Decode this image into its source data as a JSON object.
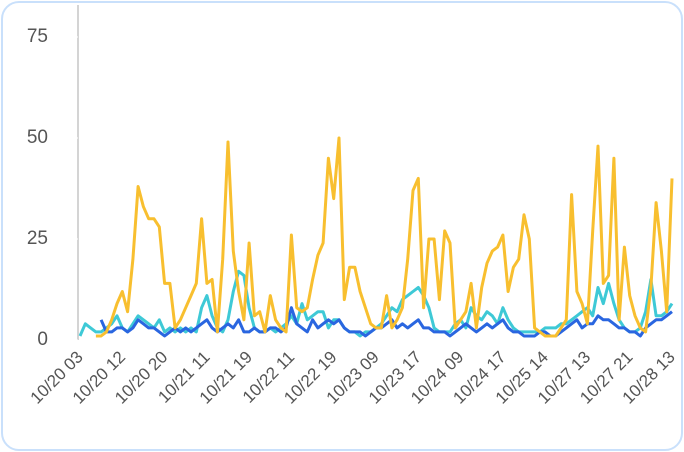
{
  "chart_data": {
    "type": "line",
    "categories": [
      "10/20 03",
      null,
      null,
      null,
      null,
      null,
      null,
      null,
      "10/20 12",
      null,
      null,
      null,
      null,
      null,
      null,
      null,
      "10/20 20",
      null,
      null,
      null,
      null,
      null,
      null,
      null,
      "10/21 11",
      null,
      null,
      null,
      null,
      null,
      null,
      null,
      "10/21 19",
      null,
      null,
      null,
      null,
      null,
      null,
      null,
      "10/22 11",
      null,
      null,
      null,
      null,
      null,
      null,
      null,
      "10/22 19",
      null,
      null,
      null,
      null,
      null,
      null,
      null,
      "10/23 09",
      null,
      null,
      null,
      null,
      null,
      null,
      null,
      "10/23 17",
      null,
      null,
      null,
      null,
      null,
      null,
      null,
      "10/24 09",
      null,
      null,
      null,
      null,
      null,
      null,
      null,
      "10/24 17",
      null,
      null,
      null,
      null,
      null,
      null,
      null,
      "10/25 14",
      null,
      null,
      null,
      null,
      null,
      null,
      null,
      "10/27 13",
      null,
      null,
      null,
      null,
      null,
      null,
      null,
      "10/27 21",
      null,
      null,
      null,
      null,
      null,
      null,
      null,
      "10/28 13"
    ],
    "series": [
      {
        "color": "#3ec9d6",
        "values": [
          1,
          4,
          3,
          2,
          2,
          3,
          4,
          6,
          3,
          2,
          4,
          6,
          5,
          4,
          3,
          5,
          2,
          3,
          2,
          3,
          2,
          3,
          2,
          8,
          11,
          6,
          3,
          2,
          5,
          12,
          17,
          16,
          8,
          3,
          2,
          2,
          3,
          2,
          3,
          4,
          6,
          4,
          9,
          5,
          6,
          7,
          7,
          3,
          5,
          5,
          3,
          2,
          2,
          1,
          2,
          2,
          3,
          4,
          6,
          8,
          7,
          10,
          11,
          12,
          13,
          11,
          8,
          3,
          2,
          2,
          2,
          4,
          5,
          3,
          8,
          6,
          5,
          7,
          6,
          4,
          8,
          5,
          3,
          2,
          2,
          2,
          2,
          2,
          3,
          3,
          3,
          4,
          4,
          5,
          6,
          7,
          8,
          6,
          13,
          9,
          14,
          9,
          5,
          3,
          2,
          2,
          3,
          7,
          15,
          6,
          6,
          7,
          9
        ]
      },
      {
        "color": "#2a66e0",
        "values": [
          null,
          null,
          null,
          null,
          5,
          2,
          2,
          3,
          3,
          2,
          3,
          5,
          4,
          3,
          3,
          2,
          1,
          2,
          3,
          2,
          3,
          2,
          3,
          4,
          5,
          3,
          2,
          3,
          4,
          3,
          5,
          2,
          2,
          3,
          2,
          2,
          3,
          3,
          2,
          3,
          8,
          4,
          3,
          2,
          5,
          3,
          4,
          5,
          4,
          5,
          3,
          2,
          2,
          2,
          1,
          2,
          3,
          3,
          4,
          5,
          3,
          4,
          3,
          4,
          5,
          3,
          3,
          2,
          2,
          2,
          1,
          2,
          3,
          4,
          3,
          2,
          3,
          4,
          3,
          4,
          5,
          3,
          2,
          2,
          1,
          1,
          1,
          2,
          2,
          1,
          1,
          2,
          3,
          4,
          5,
          3,
          4,
          4,
          6,
          5,
          5,
          4,
          3,
          3,
          2,
          2,
          1,
          3,
          4,
          5,
          5,
          6,
          7
        ]
      },
      {
        "color": "#f8bf2f",
        "values": [
          null,
          null,
          null,
          1,
          1,
          2,
          5,
          9,
          12,
          7,
          20,
          38,
          33,
          30,
          30,
          28,
          14,
          14,
          3,
          5,
          8,
          11,
          14,
          30,
          14,
          15,
          2,
          20,
          49,
          22,
          12,
          5,
          24,
          6,
          7,
          2,
          11,
          5,
          3,
          2,
          26,
          8,
          7,
          8,
          15,
          21,
          24,
          45,
          35,
          50,
          10,
          18,
          18,
          12,
          8,
          4,
          3,
          3,
          11,
          3,
          5,
          8,
          20,
          37,
          40,
          8,
          25,
          25,
          10,
          27,
          24,
          3,
          5,
          7,
          14,
          3,
          13,
          19,
          22,
          23,
          26,
          12,
          18,
          20,
          31,
          25,
          3,
          2,
          1,
          1,
          1,
          3,
          5,
          36,
          12,
          9,
          4,
          27,
          48,
          14,
          16,
          45,
          5,
          23,
          11,
          6,
          3,
          2,
          13,
          34,
          22,
          7,
          40
        ]
      }
    ],
    "ylim": [
      0,
      75
    ],
    "yticks": [
      0,
      25,
      50,
      75
    ]
  }
}
